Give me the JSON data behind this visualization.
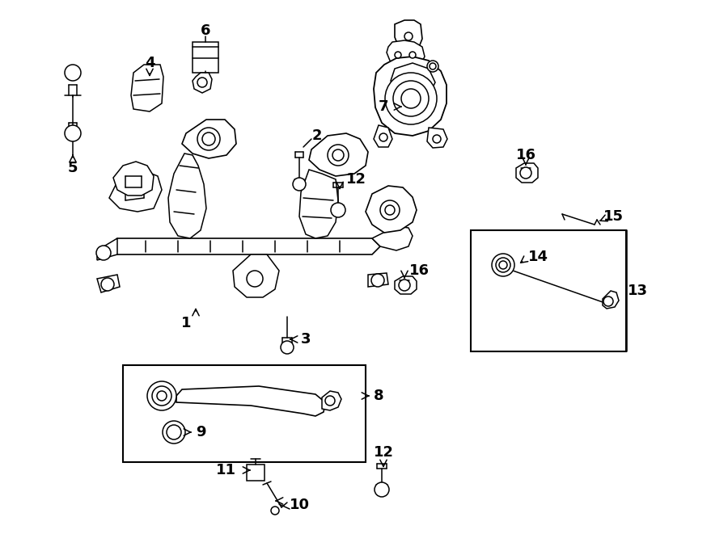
{
  "bg": "#ffffff",
  "lc": "#000000",
  "lw": 1.1,
  "fw": 9.0,
  "fh": 6.61,
  "dpi": 100,
  "fs": 13
}
